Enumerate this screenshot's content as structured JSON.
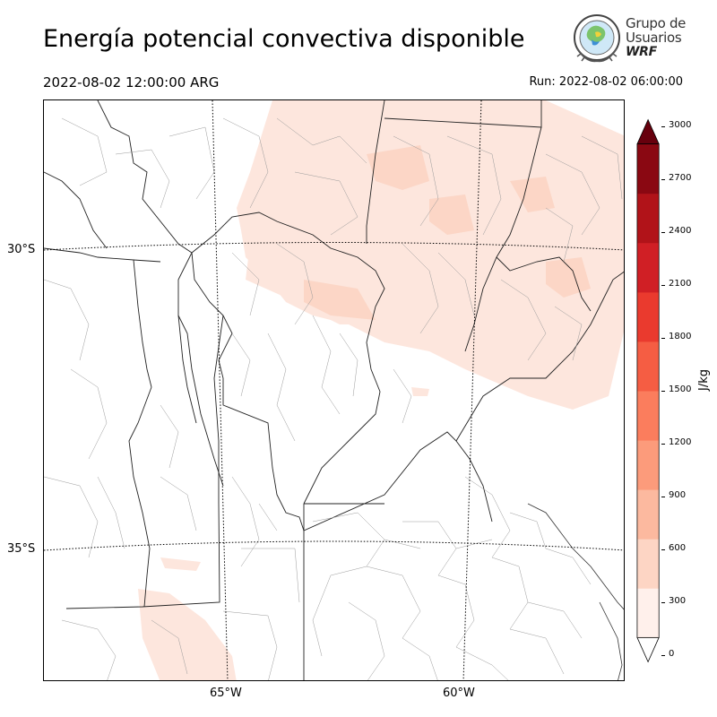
{
  "title": "Energía potencial convectiva disponible",
  "valid_time": "2022-08-02 12:00:00 ARG",
  "run_time": "Run: 2022-08-02 06:00:00",
  "logo": {
    "line1": "Grupo de",
    "line2": "Usuarios",
    "line3": "WRF",
    "icon": "wrf-globe-logo-icon"
  },
  "map": {
    "latitude_labels": [
      "30°S",
      "35°S"
    ],
    "longitude_labels": [
      "65°W",
      "60°W"
    ],
    "graticule": true
  },
  "colorbar": {
    "unit": "J/kg",
    "levels": [
      0,
      300,
      600,
      900,
      1200,
      1500,
      1800,
      2100,
      2400,
      2700,
      3000
    ],
    "tick_labels": [
      "0",
      "300",
      "600",
      "900",
      "1200",
      "1500",
      "1800",
      "2100",
      "2400",
      "2700",
      "3000"
    ],
    "colors": [
      "#fff0eb",
      "#fdd5c4",
      "#fcb99f",
      "#fc9b7b",
      "#fb7d5d",
      "#f55d43",
      "#ea3a2e",
      "#d01f25",
      "#b11319",
      "#8a0812"
    ],
    "extend_color": "#67000d"
  }
}
